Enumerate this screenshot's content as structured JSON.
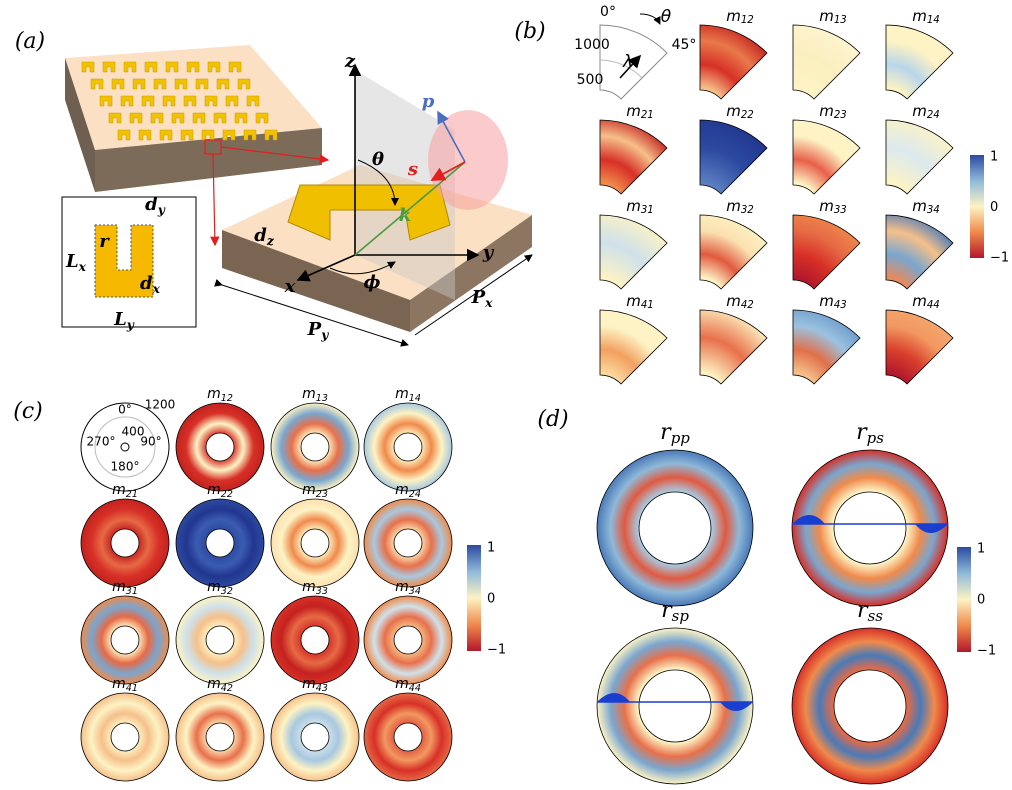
{
  "panel_labels": [
    "(a)",
    "(b)",
    "(c)",
    "(d)"
  ],
  "schematic": {
    "labels": {
      "z": "z",
      "p": "p",
      "theta": "θ",
      "s": "s",
      "k": "k",
      "y": "y",
      "x": "x",
      "phi": "ϕ",
      "dz": {
        "base": "d",
        "sub": "z"
      },
      "Py": {
        "base": "P",
        "sub": "y"
      },
      "Px": {
        "base": "P",
        "sub": "x"
      },
      "dy": {
        "base": "d",
        "sub": "y"
      },
      "r": "r",
      "Lx": {
        "base": "L",
        "sub": "x"
      },
      "dx": {
        "base": "d",
        "sub": "x"
      },
      "Ly": {
        "base": "L",
        "sub": "y"
      }
    }
  },
  "panel_b": {
    "legend": {
      "angle0": "0°",
      "theta": "θ",
      "r_outer": "1000",
      "angle45": "45°",
      "lambda": "λ",
      "r_inner": "500"
    },
    "plots": [
      {
        "base": "m",
        "sub": "12"
      },
      {
        "base": "m",
        "sub": "13"
      },
      {
        "base": "m",
        "sub": "14"
      },
      {
        "base": "m",
        "sub": "21"
      },
      {
        "base": "m",
        "sub": "22"
      },
      {
        "base": "m",
        "sub": "23"
      },
      {
        "base": "m",
        "sub": "24"
      },
      {
        "base": "m",
        "sub": "31"
      },
      {
        "base": "m",
        "sub": "32"
      },
      {
        "base": "m",
        "sub": "33"
      },
      {
        "base": "m",
        "sub": "34"
      },
      {
        "base": "m",
        "sub": "41"
      },
      {
        "base": "m",
        "sub": "42"
      },
      {
        "base": "m",
        "sub": "43"
      },
      {
        "base": "m",
        "sub": "44"
      }
    ],
    "colorbar": [
      "1",
      "0",
      "−1"
    ]
  },
  "panel_c": {
    "legend": {
      "angle0": "0°",
      "r_outer": "1200",
      "r_inner": "400",
      "angle270": "270°",
      "angle90": "90°",
      "angle180": "180°"
    },
    "plots": [
      {
        "base": "m",
        "sub": "12"
      },
      {
        "base": "m",
        "sub": "13"
      },
      {
        "base": "m",
        "sub": "14"
      },
      {
        "base": "m",
        "sub": "21"
      },
      {
        "base": "m",
        "sub": "22"
      },
      {
        "base": "m",
        "sub": "23"
      },
      {
        "base": "m",
        "sub": "24"
      },
      {
        "base": "m",
        "sub": "31"
      },
      {
        "base": "m",
        "sub": "32"
      },
      {
        "base": "m",
        "sub": "33"
      },
      {
        "base": "m",
        "sub": "34"
      },
      {
        "base": "m",
        "sub": "41"
      },
      {
        "base": "m",
        "sub": "42"
      },
      {
        "base": "m",
        "sub": "43"
      },
      {
        "base": "m",
        "sub": "44"
      }
    ],
    "colorbar": [
      "1",
      "0",
      "−1"
    ]
  },
  "panel_d": {
    "plots": [
      {
        "base": "r",
        "sub": "pp"
      },
      {
        "base": "r",
        "sub": "ps"
      },
      {
        "base": "r",
        "sub": "sp"
      },
      {
        "base": "r",
        "sub": "ss"
      }
    ],
    "colorbar": [
      "1",
      "0",
      "−1"
    ]
  }
}
